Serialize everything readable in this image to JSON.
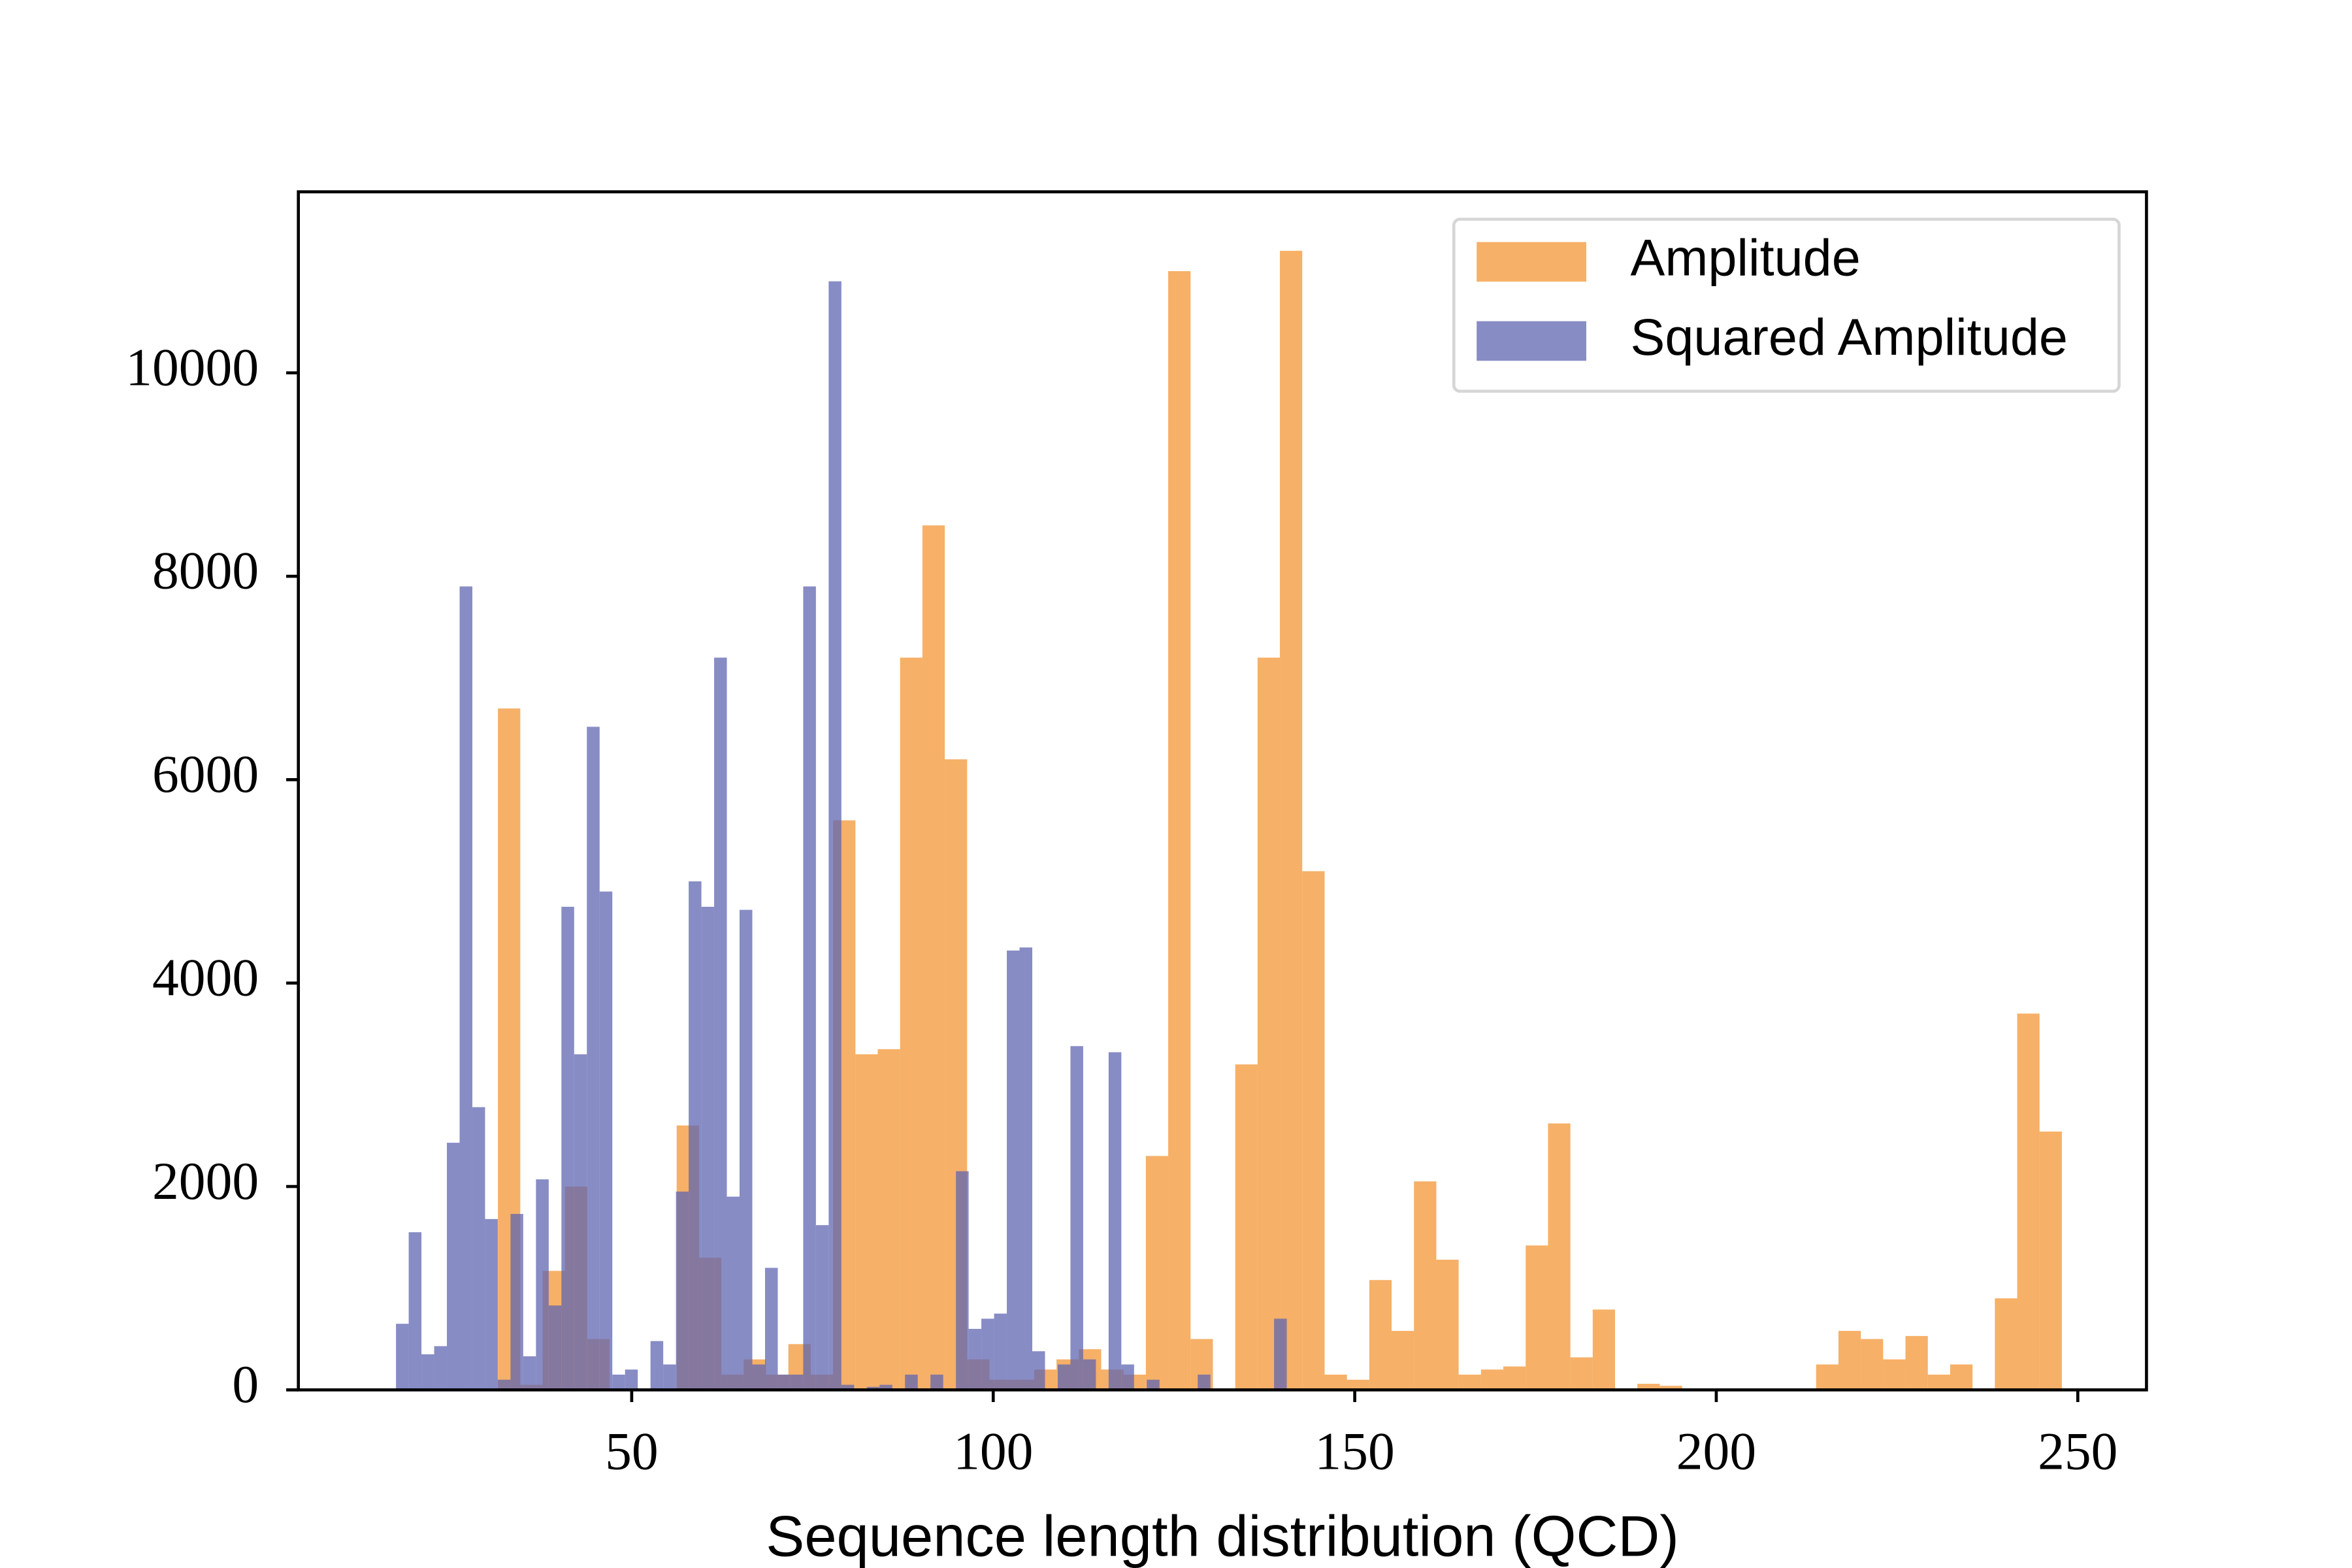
{
  "chart_data": {
    "type": "histogram",
    "xlabel": "Sequence length distribution (QCD)",
    "xlim": [
      3.9,
      259.5
    ],
    "ylim": [
      0,
      11780
    ],
    "xticks": [
      50,
      100,
      150,
      200,
      250
    ],
    "yticks": [
      0,
      2000,
      4000,
      6000,
      8000,
      10000
    ],
    "legend": "upper right",
    "alpha": 0.75,
    "series": [
      {
        "name": "Amplitude",
        "color": "#f39534",
        "bins": [
          31.5,
          34.59,
          37.68,
          40.77,
          43.86,
          46.95,
          50.04,
          53.13,
          56.22,
          59.31,
          62.4,
          65.49,
          68.58,
          71.67,
          74.76,
          77.85,
          80.94,
          84.03,
          87.12,
          90.21,
          93.3,
          96.39,
          99.48,
          102.57,
          105.66,
          108.75,
          111.84,
          114.93,
          118.02,
          121.11,
          124.2,
          127.29,
          130.38,
          133.47,
          136.56,
          139.65,
          142.74,
          145.83,
          148.92,
          152.01,
          155.1,
          158.19,
          161.28,
          164.37,
          167.46,
          170.55,
          173.64,
          176.73,
          179.82,
          182.91,
          186.0,
          189.09,
          192.18,
          195.27,
          198.36,
          201.45,
          204.54,
          207.63,
          210.72,
          213.81,
          216.9,
          219.99,
          223.08,
          226.17,
          229.26,
          232.35,
          235.44,
          238.53,
          241.62,
          244.71,
          247.8
        ],
        "values": [
          6700,
          50,
          1170,
          2000,
          500,
          0,
          0,
          0,
          2600,
          1300,
          150,
          300,
          150,
          450,
          150,
          5600,
          3300,
          3350,
          7200,
          8500,
          6200,
          300,
          100,
          100,
          200,
          300,
          400,
          200,
          150,
          2300,
          11000,
          500,
          0,
          3200,
          7200,
          11200,
          5100,
          150,
          100,
          1080,
          580,
          2050,
          1280,
          150,
          200,
          230,
          1420,
          2620,
          320,
          790,
          0,
          60,
          40,
          0,
          0,
          0,
          0,
          0,
          0,
          250,
          580,
          500,
          300,
          530,
          150,
          250,
          0,
          900,
          3700,
          2540
        ]
      },
      {
        "name": "Squared Amplitude",
        "color": "#5f66b2",
        "bins": [
          17.4,
          19.16,
          20.92,
          22.68,
          24.44,
          26.2,
          27.96,
          29.72,
          31.48,
          33.24,
          35.0,
          36.76,
          38.52,
          40.28,
          42.04,
          43.8,
          45.56,
          47.32,
          49.08,
          50.84,
          52.6,
          54.36,
          56.12,
          57.88,
          59.64,
          61.4,
          63.16,
          64.92,
          66.68,
          68.44,
          70.2,
          71.96,
          73.72,
          75.48,
          77.24,
          79.0,
          80.76,
          82.52,
          84.28,
          86.04,
          87.8,
          89.56,
          91.32,
          93.08,
          94.84,
          96.6,
          98.36,
          100.12,
          101.88,
          103.64,
          105.4,
          107.16,
          108.92,
          110.68,
          112.44,
          114.2,
          115.96,
          117.72,
          119.48,
          121.24,
          123.0,
          124.76,
          126.52,
          128.28,
          130.04,
          131.8,
          133.56,
          135.32,
          137.08,
          138.84,
          140.6
        ],
        "values": [
          650,
          1550,
          350,
          430,
          2430,
          7900,
          2780,
          1680,
          100,
          1730,
          330,
          2070,
          830,
          4750,
          3300,
          6520,
          4900,
          150,
          200,
          0,
          480,
          250,
          1950,
          5000,
          4750,
          7200,
          1900,
          4720,
          250,
          1200,
          150,
          150,
          7900,
          1620,
          10900,
          50,
          0,
          30,
          50,
          0,
          150,
          0,
          150,
          0,
          2150,
          600,
          700,
          750,
          4320,
          4350,
          380,
          0,
          250,
          3380,
          300,
          0,
          3320,
          250,
          0,
          100,
          0,
          0,
          0,
          150,
          0,
          0,
          0,
          0,
          0,
          700
        ]
      }
    ]
  }
}
